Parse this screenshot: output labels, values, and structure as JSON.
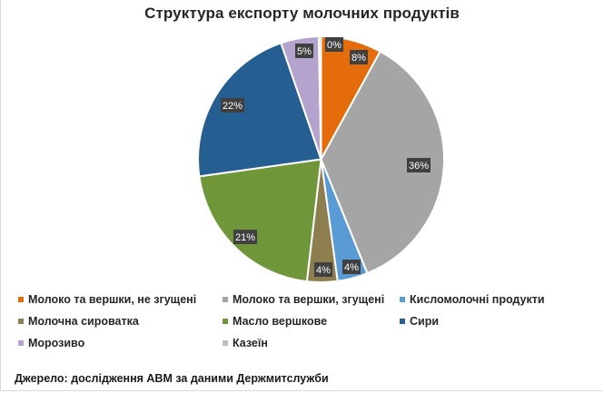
{
  "chart_data": {
    "type": "pie",
    "title": "Структура експорту молочних продуктів",
    "start_angle_deg": 0,
    "direction": "clockwise",
    "categories": [
      "Молоко та вершки, не згущені",
      "Молоко та вершки, згущені",
      "Кисломолочні продукти",
      "Молочна сироватка",
      "Масло вершкове",
      "Сири",
      "Морозиво",
      "Казеїн"
    ],
    "values": [
      8,
      36,
      4,
      4,
      21,
      22,
      5,
      0
    ],
    "value_labels": [
      "8%",
      "36%",
      "4%",
      "4%",
      "21%",
      "22%",
      "5%",
      "0%"
    ],
    "colors": [
      "#e46c0a",
      "#a5a5a5",
      "#5b9bd5",
      "#8c7e4f",
      "#70963a",
      "#255e91",
      "#b4a3cc",
      "#c0c0c0"
    ],
    "legend_position": "bottom",
    "data_labels": true
  },
  "chart": {
    "title": "Структура експорту молочних продуктів",
    "legend": [
      {
        "label": "Молоко та вершки, не згущені",
        "color": "#e46c0a"
      },
      {
        "label": "Молоко та вершки, згущені",
        "color": "#a5a5a5"
      },
      {
        "label": "Кисломолочні продукти",
        "color": "#5b9bd5"
      },
      {
        "label": "Молочна сироватка",
        "color": "#8c7e4f"
      },
      {
        "label": "Масло вершкове",
        "color": "#70963a"
      },
      {
        "label": "Сири",
        "color": "#255e91"
      },
      {
        "label": "Морозиво",
        "color": "#b4a3cc"
      },
      {
        "label": "Казеїн",
        "color": "#c0c0c0"
      }
    ]
  },
  "source": "Джерело: дослідження АВМ за даними Держмитслужби"
}
